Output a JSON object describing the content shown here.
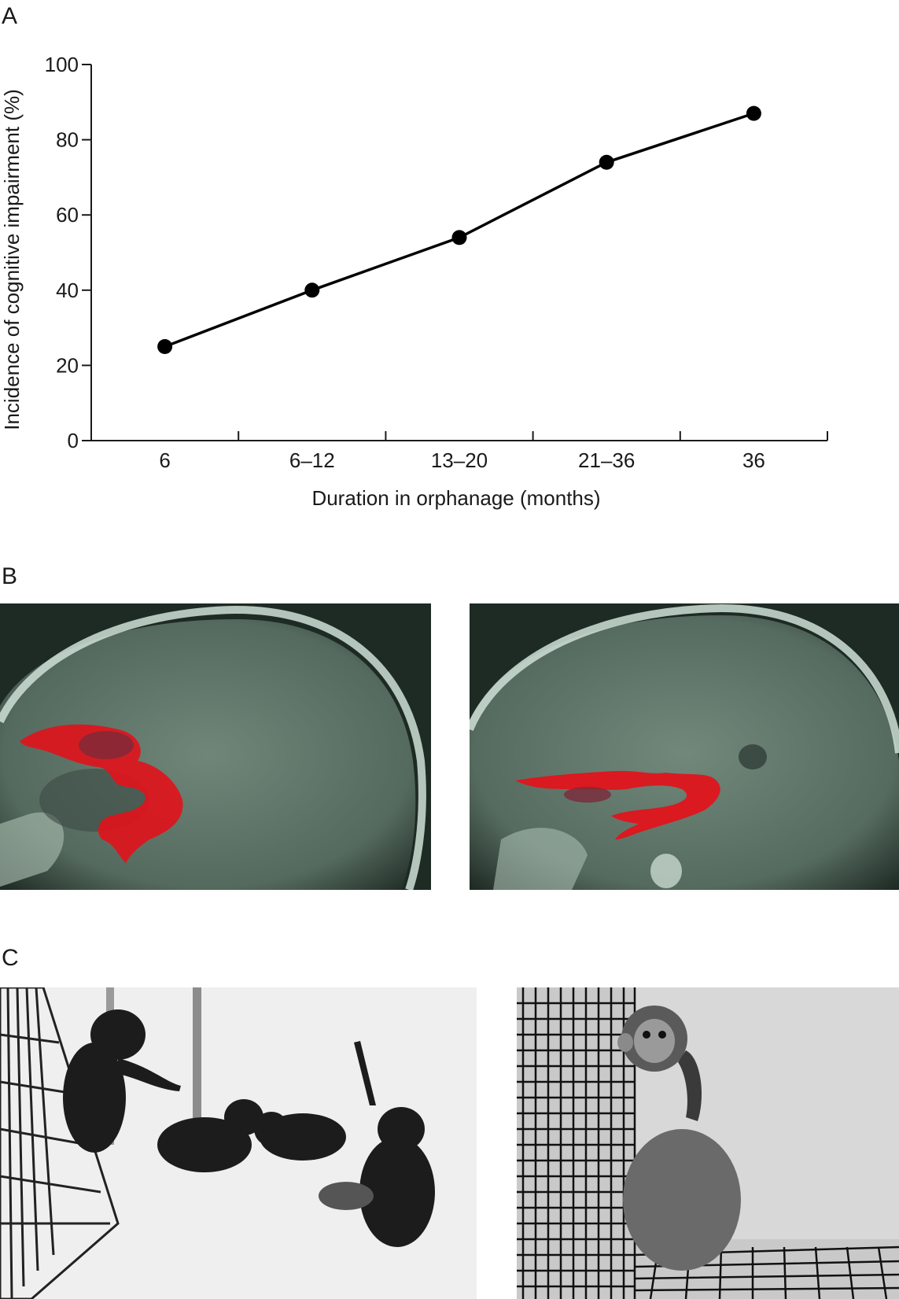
{
  "panels": {
    "a": "A",
    "b": "B",
    "c": "C"
  },
  "chart_data": {
    "type": "line",
    "categories": [
      "6",
      "6–12",
      "13–20",
      "21–36",
      "36"
    ],
    "values": [
      25,
      40,
      54,
      74,
      87
    ],
    "xlabel": "Duration in orphanage (months)",
    "ylabel": "Incidence of cognitive impairment (%)",
    "ylim": [
      0,
      100
    ],
    "yticks": [
      0,
      20,
      40,
      60,
      80,
      100
    ],
    "grid": false,
    "line_color": "#000000",
    "marker": "filled-circle"
  },
  "images": {
    "mri_left": "sagittal-mri-with-red-tract-overlay",
    "mri_right": "sagittal-mri-with-thin-red-tract-overlay",
    "monkeys_group": "photo-infant-monkeys-playing",
    "monkey_isolated": "photo-isolated-monkey-in-cage-corner"
  },
  "colors": {
    "overlay_red": "#e0141c",
    "mri_tint": "#6f8679"
  }
}
